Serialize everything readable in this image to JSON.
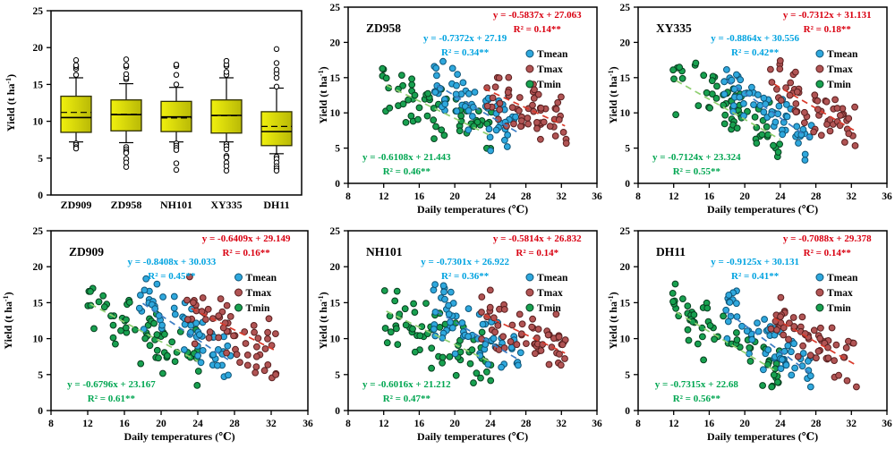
{
  "figure": {
    "background": "#ffffff",
    "axis_color": "#000000",
    "tick_text_color": "#000000"
  },
  "series_styles": {
    "Tmean": {
      "marker_fill": "#2fa8dd",
      "marker_stroke": "#0f5578",
      "trend_color": "#3b7dc4",
      "equation_color": "#00a3e0"
    },
    "Tmax": {
      "marker_fill": "#b15454",
      "marker_stroke": "#5a2020",
      "trend_color": "#d93a2b",
      "equation_color": "#d90011"
    },
    "Tmin": {
      "marker_fill": "#18a150",
      "marker_stroke": "#073f1f",
      "trend_color": "#8fcf70",
      "equation_color": "#00a651"
    }
  },
  "box_style": {
    "fill_light": "#f0f00e",
    "fill_dark": "#b9b906",
    "border": "#2f2f00",
    "median_color": "#000000",
    "mean_color": "#000000",
    "outlier_stroke": "#000000"
  },
  "chart_data": [
    {
      "type": "box",
      "title": "",
      "ylabel": "Yield (t ha⁻¹)",
      "ylim": [
        0,
        25
      ],
      "yticks": [
        0,
        5,
        10,
        15,
        20,
        25
      ],
      "categories": [
        "ZD909",
        "ZD958",
        "NH101",
        "XY335",
        "DH11"
      ],
      "boxes": [
        {
          "category": "ZD909",
          "whisker_low": 7.2,
          "q1": 8.5,
          "median": 10.5,
          "mean": 11.2,
          "q3": 13.4,
          "whisker_high": 15.9,
          "outliers_high": [
            16.3,
            17.1,
            17.4,
            17.6,
            18.3
          ],
          "outliers_low": [
            7.0,
            6.8,
            6.5,
            6.3
          ]
        },
        {
          "category": "ZD958",
          "whisker_low": 7.1,
          "q1": 8.7,
          "median": 10.9,
          "mean": 10.95,
          "q3": 12.9,
          "whisker_high": 15.1,
          "outliers_high": [
            15.7,
            15.9,
            16.4,
            17.4,
            17.6,
            18.4
          ],
          "outliers_low": [
            6.5,
            6.2,
            5.9,
            5.7,
            4.9,
            4.4,
            3.8
          ]
        },
        {
          "category": "NH101",
          "whisker_low": 7.2,
          "q1": 8.6,
          "median": 10.6,
          "mean": 10.45,
          "q3": 12.7,
          "whisker_high": 14.6,
          "outliers_high": [
            15.0,
            16.3,
            17.5,
            17.7
          ],
          "outliers_low": [
            7.0,
            6.7,
            6.4,
            6.1,
            4.3,
            3.4
          ]
        },
        {
          "category": "XY335",
          "whisker_low": 7.2,
          "q1": 8.4,
          "median": 10.8,
          "mean": 10.75,
          "q3": 12.9,
          "whisker_high": 15.9,
          "outliers_high": [
            16.3,
            16.7,
            17.5,
            17.7,
            18.2
          ],
          "outliers_low": [
            6.9,
            6.6,
            6.2,
            5.3,
            5.1,
            4.4,
            3.9,
            3.3
          ]
        },
        {
          "category": "DH11",
          "whisker_low": 5.6,
          "q1": 6.7,
          "median": 8.6,
          "mean": 9.3,
          "q3": 11.3,
          "whisker_high": 14.5,
          "outliers_high": [
            14.7,
            15.9,
            16.5,
            17.0,
            17.9,
            19.8
          ],
          "outliers_low": [
            5.2,
            4.9,
            4.4,
            3.9,
            3.6,
            3.3
          ]
        }
      ]
    },
    {
      "type": "scatter",
      "title": "ZD958",
      "xlabel": "Daily temperatures (℃)",
      "ylabel": "Yield (t ha⁻¹)",
      "xlim": [
        8,
        36
      ],
      "ylim": [
        0,
        25
      ],
      "xticks": [
        8,
        12,
        16,
        20,
        24,
        28,
        32,
        36
      ],
      "yticks": [
        0,
        5,
        10,
        15,
        20,
        25
      ],
      "legend": [
        "Tmean",
        "Tmax",
        "Tmin"
      ],
      "series": [
        {
          "name": "Tmean",
          "equation": "y = -0.7372x + 27.19",
          "r2": "R² = 0.34**",
          "slope": -0.7372,
          "intercept": 27.19,
          "x_range": [
            17.6,
            27.6
          ],
          "line_range": [
            18.0,
            27.3
          ],
          "n": 60
        },
        {
          "name": "Tmax",
          "equation": "y = -0.5837x + 27.063",
          "r2": "R² = 0.14**",
          "slope": -0.5837,
          "intercept": 27.063,
          "x_range": [
            22.8,
            32.6
          ],
          "line_range": [
            23.3,
            32.4
          ],
          "n": 58
        },
        {
          "name": "Tmin",
          "equation": "y = -0.6108x + 21.443",
          "r2": "R² = 0.46**",
          "slope": -0.6108,
          "intercept": 21.443,
          "x_range": [
            11.8,
            24.2
          ],
          "line_range": [
            12.3,
            24.0
          ],
          "n": 62
        }
      ]
    },
    {
      "type": "scatter",
      "title": "XY335",
      "xlabel": "Daily temperatures (℃)",
      "ylabel": "Yield (t ha⁻¹)",
      "xlim": [
        8,
        36
      ],
      "ylim": [
        0,
        25
      ],
      "xticks": [
        8,
        12,
        16,
        20,
        24,
        28,
        32,
        36
      ],
      "yticks": [
        0,
        5,
        10,
        15,
        20,
        25
      ],
      "legend": [
        "Tmean",
        "Tmax",
        "Tmin"
      ],
      "series": [
        {
          "name": "Tmean",
          "equation": "y = -0.8864x + 30.556",
          "r2": "R² = 0.42**",
          "slope": -0.8864,
          "intercept": 30.556,
          "x_range": [
            17.6,
            27.6
          ],
          "line_range": [
            18.0,
            27.3
          ],
          "n": 60
        },
        {
          "name": "Tmax",
          "equation": "y = -0.7312x + 31.131",
          "r2": "R² = 0.18**",
          "slope": -0.7312,
          "intercept": 31.131,
          "x_range": [
            22.8,
            32.6
          ],
          "line_range": [
            23.3,
            32.4
          ],
          "n": 58
        },
        {
          "name": "Tmin",
          "equation": "y = -0.7124x + 23.324",
          "r2": "R² = 0.55**",
          "slope": -0.7124,
          "intercept": 23.324,
          "x_range": [
            11.8,
            24.2
          ],
          "line_range": [
            12.3,
            24.0
          ],
          "n": 62
        }
      ]
    },
    {
      "type": "scatter",
      "title": "ZD909",
      "xlabel": "Daily temperatures (℃)",
      "ylabel": "Yield (t ha⁻¹)",
      "xlim": [
        8,
        36
      ],
      "ylim": [
        0,
        25
      ],
      "xticks": [
        8,
        12,
        16,
        20,
        24,
        28,
        32,
        36
      ],
      "yticks": [
        0,
        5,
        10,
        15,
        20,
        25
      ],
      "legend": [
        "Tmean",
        "Tmax",
        "Tmin"
      ],
      "series": [
        {
          "name": "Tmean",
          "equation": "y = -0.8408x + 30.033",
          "r2": "R² = 0.45**",
          "slope": -0.8408,
          "intercept": 30.033,
          "x_range": [
            17.6,
            27.6
          ],
          "line_range": [
            18.0,
            27.3
          ],
          "n": 60
        },
        {
          "name": "Tmax",
          "equation": "y = -0.6409x + 29.149",
          "r2": "R² = 0.16**",
          "slope": -0.6409,
          "intercept": 29.149,
          "x_range": [
            22.8,
            32.6
          ],
          "line_range": [
            23.3,
            32.4
          ],
          "n": 58
        },
        {
          "name": "Tmin",
          "equation": "y = -0.6796x + 23.167",
          "r2": "R² = 0.61**",
          "slope": -0.6796,
          "intercept": 23.167,
          "x_range": [
            11.8,
            24.2
          ],
          "line_range": [
            12.3,
            24.0
          ],
          "n": 62
        }
      ]
    },
    {
      "type": "scatter",
      "title": "NH101",
      "xlabel": "Daily temperatures (℃)",
      "ylabel": "Yield (t ha⁻¹)",
      "xlim": [
        8,
        36
      ],
      "ylim": [
        0,
        25
      ],
      "xticks": [
        8,
        12,
        16,
        20,
        24,
        28,
        32,
        36
      ],
      "yticks": [
        0,
        5,
        10,
        15,
        20,
        25
      ],
      "legend": [
        "Tmean",
        "Tmax",
        "Tmin"
      ],
      "series": [
        {
          "name": "Tmean",
          "equation": "y = -0.7301x + 26.922",
          "r2": "R² = 0.36**",
          "slope": -0.7301,
          "intercept": 26.922,
          "x_range": [
            17.6,
            27.6
          ],
          "line_range": [
            18.0,
            27.3
          ],
          "n": 60
        },
        {
          "name": "Tmax",
          "equation": "y = -0.5814x + 26.832",
          "r2": "R² = 0.14*",
          "slope": -0.5814,
          "intercept": 26.832,
          "x_range": [
            22.8,
            32.6
          ],
          "line_range": [
            23.3,
            32.4
          ],
          "n": 58
        },
        {
          "name": "Tmin",
          "equation": "y = -0.6016x + 21.212",
          "r2": "R² = 0.47**",
          "slope": -0.6016,
          "intercept": 21.212,
          "x_range": [
            11.8,
            24.2
          ],
          "line_range": [
            12.3,
            24.0
          ],
          "n": 62
        }
      ]
    },
    {
      "type": "scatter",
      "title": "DH11",
      "xlabel": "Daily temperatures (℃)",
      "ylabel": "Yield (t ha⁻¹)",
      "xlim": [
        8,
        36
      ],
      "ylim": [
        0,
        25
      ],
      "xticks": [
        8,
        12,
        16,
        20,
        24,
        28,
        32,
        36
      ],
      "yticks": [
        0,
        5,
        10,
        15,
        20,
        25
      ],
      "legend": [
        "Tmean",
        "Tmax",
        "Tmin"
      ],
      "series": [
        {
          "name": "Tmean",
          "equation": "y = -0.9125x + 30.131",
          "r2": "R² = 0.41**",
          "slope": -0.9125,
          "intercept": 30.131,
          "x_range": [
            17.6,
            27.6
          ],
          "line_range": [
            18.0,
            27.3
          ],
          "n": 60
        },
        {
          "name": "Tmax",
          "equation": "y = -0.7088x + 29.378",
          "r2": "R² = 0.14**",
          "slope": -0.7088,
          "intercept": 29.378,
          "x_range": [
            22.8,
            32.6
          ],
          "line_range": [
            23.3,
            32.4
          ],
          "n": 58
        },
        {
          "name": "Tmin",
          "equation": "y = -0.7315x + 22.68",
          "r2": "R² = 0.56**",
          "slope": -0.7315,
          "intercept": 22.68,
          "x_range": [
            11.8,
            24.2
          ],
          "line_range": [
            12.3,
            24.0
          ],
          "n": 62
        }
      ]
    }
  ]
}
